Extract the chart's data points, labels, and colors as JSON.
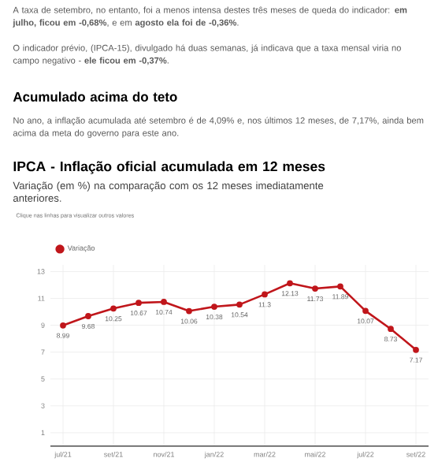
{
  "chart_data": {
    "type": "line",
    "title": "IPCA - Inflação oficial acumulada em 12 meses",
    "subtitle": "Variação (em %) na comparação com os 12 meses imediatamente anteriores.",
    "annotations": [
      "A taxa de setembro, no entanto, foi a menos intensa destes três meses de queda do indicador: **em julho, ficou em -0,68%**, e em **agosto ela foi de -0,36%**.",
      "O indicador prévio, (IPCA-15), divulgado há duas semanas, já indicava que a taxa mensal viria no campo negativo - **ele ficou em -0,37%**.",
      "Acumulado acima do teto",
      "No ano, a inflação acumulada até setembro é de 4,09% e, nos últimos 12 meses, de 7,17%, ainda bem acima da meta do governo para este ano.",
      "Clique nas linhas para visualizar outros valores"
    ],
    "categories": [
      "jul/21",
      null,
      "set/21",
      null,
      "nov/21",
      null,
      "jan/22",
      null,
      "mar/22",
      null,
      "mai/22",
      null,
      "jul/22",
      null,
      "set/22"
    ],
    "series": [
      {
        "name": "Variação",
        "color": "#c0161b",
        "values": [
          8.99,
          9.68,
          10.25,
          10.67,
          10.74,
          10.06,
          10.38,
          10.54,
          11.3,
          12.13,
          11.73,
          11.89,
          10.07,
          8.73,
          7.17
        ]
      }
    ],
    "ylim": [
      0,
      13.5
    ],
    "yticks": [
      1,
      3,
      5,
      7,
      9,
      11,
      13
    ],
    "grid": true,
    "legend": "top left",
    "marker": "circle",
    "line_style": "solid",
    "data_labels": true
  }
}
